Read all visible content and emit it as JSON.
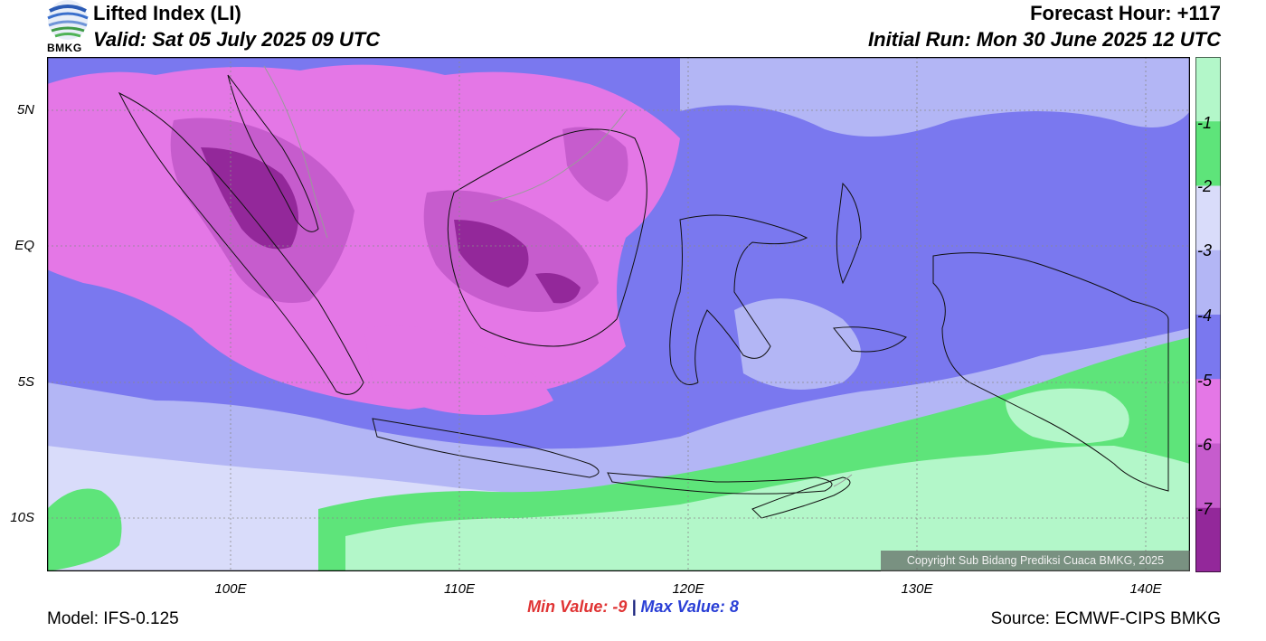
{
  "header": {
    "title": "Lifted Index (LI)",
    "valid": "Valid: Sat 05 July 2025 09 UTC",
    "forecast_hour": "Forecast Hour: +117",
    "initial_run": "Initial Run: Mon 30 June 2025 12 UTC"
  },
  "logo": {
    "name": "BMKG"
  },
  "axes": {
    "lat_labels": [
      "5N",
      "EQ",
      "5S",
      "10S"
    ],
    "lon_labels": [
      "100E",
      "110E",
      "120E",
      "130E",
      "140E"
    ]
  },
  "legend": {
    "labels": [
      "-1",
      "-2",
      "-3",
      "-4",
      "-5",
      "-6",
      "-7"
    ],
    "colors": [
      "#b3f7c9",
      "#5ee47a",
      "#d9dcfa",
      "#b3b6f5",
      "#7a78ef",
      "#e477e6",
      "#c65ccd",
      "#93289a"
    ]
  },
  "stats": {
    "min_label": "Min Value:",
    "min_value": "-9",
    "separator": "|",
    "max_label": "Max Value:",
    "max_value": "8"
  },
  "footer": {
    "model": "Model: IFS-0.125",
    "source": "Source: ECMWF-CIPS BMKG",
    "copyright": "Copyright Sub Bidang Prediksi Cuaca BMKG, 2025"
  }
}
